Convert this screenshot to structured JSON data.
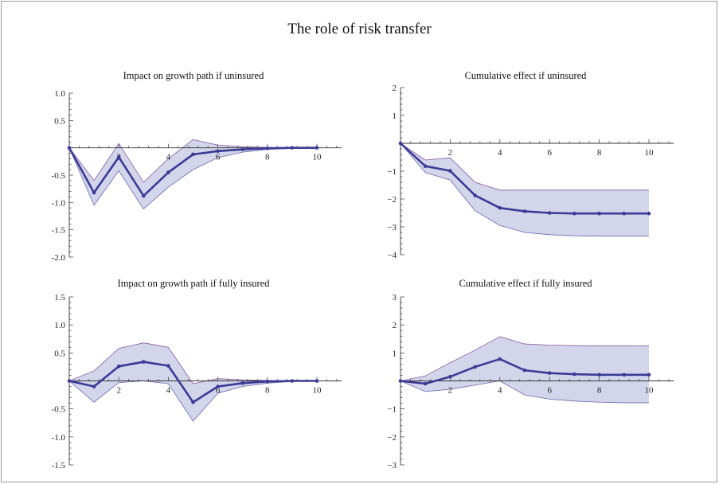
{
  "figure": {
    "title": "The role of risk transfer"
  },
  "colors": {
    "band_fill": "#d3d5ea",
    "band_edge": "#8a5aa0",
    "line": "#3b3b96",
    "axis": "#333333"
  },
  "chart_data": [
    {
      "type": "line",
      "title": "Impact on growth path if uninsured",
      "x": [
        0,
        1,
        2,
        3,
        4,
        5,
        6,
        7,
        8,
        9,
        10
      ],
      "series": [
        {
          "values": [
            0,
            -0.82,
            -0.17,
            -0.88,
            -0.45,
            -0.12,
            -0.06,
            -0.03,
            -0.01,
            0,
            0
          ]
        }
      ],
      "band": {
        "upper": [
          0,
          -0.6,
          0.08,
          -0.63,
          -0.2,
          0.15,
          0.05,
          0.02,
          0.01,
          0,
          0
        ],
        "lower": [
          0,
          -1.05,
          -0.42,
          -1.12,
          -0.72,
          -0.4,
          -0.18,
          -0.08,
          -0.03,
          -0.01,
          0
        ]
      },
      "xlim": [
        0,
        11
      ],
      "ylim": [
        -2.0,
        1.0
      ],
      "xticks": [
        2,
        4,
        6,
        8,
        10
      ],
      "xtick_labels": [
        "2",
        "4",
        "6",
        "8",
        "10"
      ],
      "yticks": [
        1.0,
        0.5,
        -0.5,
        -1.0,
        -1.5,
        -2.0
      ],
      "ytick_labels": [
        "1.0",
        "0.5",
        "-0.5",
        "-1.0",
        "-1.5",
        "-2.0"
      ]
    },
    {
      "type": "line",
      "title": "Cumulative effect if uninsured",
      "x": [
        0,
        1,
        2,
        3,
        4,
        5,
        6,
        7,
        8,
        9,
        10
      ],
      "series": [
        {
          "values": [
            0,
            -0.82,
            -0.99,
            -1.87,
            -2.32,
            -2.44,
            -2.5,
            -2.52,
            -2.52,
            -2.52,
            -2.52
          ]
        }
      ],
      "band": {
        "upper": [
          0,
          -0.6,
          -0.52,
          -1.4,
          -1.68,
          -1.68,
          -1.68,
          -1.68,
          -1.68,
          -1.68,
          -1.68
        ],
        "lower": [
          0,
          -1.05,
          -1.32,
          -2.42,
          -2.95,
          -3.2,
          -3.28,
          -3.32,
          -3.33,
          -3.33,
          -3.33
        ]
      },
      "xlim": [
        0,
        11
      ],
      "ylim": [
        -4,
        2
      ],
      "xticks": [
        2,
        4,
        6,
        8,
        10
      ],
      "xtick_labels": [
        "2",
        "4",
        "6",
        "8",
        "10"
      ],
      "yticks": [
        2,
        1,
        -1,
        -2,
        -3,
        -4
      ],
      "ytick_labels": [
        "2",
        "1",
        "−1",
        "−2",
        "−3",
        "−4"
      ]
    },
    {
      "type": "line",
      "title": "Impact on growth path if fully insured",
      "x": [
        0,
        1,
        2,
        3,
        4,
        5,
        6,
        7,
        8,
        9,
        10
      ],
      "series": [
        {
          "values": [
            0,
            -0.1,
            0.26,
            0.34,
            0.27,
            -0.38,
            -0.1,
            -0.04,
            -0.01,
            0,
            0
          ]
        }
      ],
      "band": {
        "upper": [
          0,
          0.18,
          0.58,
          0.68,
          0.6,
          -0.05,
          0.04,
          0.02,
          0.01,
          0,
          0
        ],
        "lower": [
          0,
          -0.38,
          -0.03,
          0.0,
          -0.05,
          -0.72,
          -0.22,
          -0.1,
          -0.04,
          -0.01,
          0
        ]
      },
      "xlim": [
        0,
        11
      ],
      "ylim": [
        -1.5,
        1.5
      ],
      "xticks": [
        2,
        4,
        6,
        8,
        10
      ],
      "xtick_labels": [
        "2",
        "4",
        "6",
        "8",
        "10"
      ],
      "yticks": [
        1.5,
        1.0,
        0.5,
        -0.5,
        -1.0,
        -1.5
      ],
      "ytick_labels": [
        "1.5",
        "1.0",
        "0.5",
        "-0.5",
        "-1.0",
        "-1.5"
      ]
    },
    {
      "type": "line",
      "title": "Cumulative effect if fully insured",
      "x": [
        0,
        1,
        2,
        3,
        4,
        5,
        6,
        7,
        8,
        9,
        10
      ],
      "series": [
        {
          "values": [
            0,
            -0.1,
            0.15,
            0.5,
            0.78,
            0.38,
            0.28,
            0.24,
            0.22,
            0.22,
            0.22
          ]
        }
      ],
      "band": {
        "upper": [
          0,
          0.18,
          0.65,
          1.1,
          1.58,
          1.32,
          1.28,
          1.26,
          1.25,
          1.25,
          1.25
        ],
        "lower": [
          0,
          -0.38,
          -0.3,
          -0.15,
          0.0,
          -0.5,
          -0.65,
          -0.72,
          -0.76,
          -0.78,
          -0.78
        ]
      },
      "xlim": [
        0,
        11
      ],
      "ylim": [
        -3,
        3
      ],
      "xticks": [
        2,
        4,
        6,
        8,
        10
      ],
      "xtick_labels": [
        "2",
        "4",
        "6",
        "8",
        "10"
      ],
      "yticks": [
        3,
        2,
        1,
        -1,
        -2,
        -3
      ],
      "ytick_labels": [
        "3",
        "2",
        "1",
        "−1",
        "−2",
        "−3"
      ]
    }
  ]
}
